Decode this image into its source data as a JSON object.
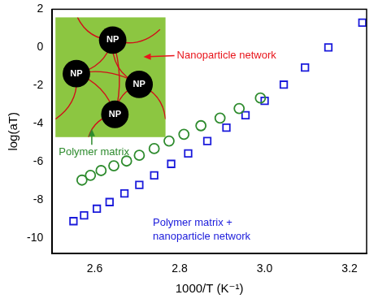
{
  "chart_data": {
    "type": "scatter",
    "x_label": "1000/T (K⁻¹)",
    "y_label": "log(aT)",
    "xlim": [
      2.5,
      3.24
    ],
    "ylim": [
      -10.8,
      2
    ],
    "xticks": [
      2.6,
      2.8,
      {
        "value": 3,
        "label": "3.0"
      },
      3.2
    ],
    "yticks": [
      -10,
      -8,
      -6,
      -4,
      -2,
      0,
      2
    ],
    "grid": false,
    "series": [
      {
        "name": "Polymer matrix",
        "color": "#2e8b2e",
        "marker": "circle",
        "x": [
          2.57,
          2.59,
          2.615,
          2.645,
          2.675,
          2.705,
          2.74,
          2.775,
          2.81,
          2.85,
          2.895,
          2.94,
          2.99
        ],
        "values": [
          -6.95,
          -6.7,
          -6.45,
          -6.2,
          -5.95,
          -5.65,
          -5.3,
          -4.9,
          -4.55,
          -4.1,
          -3.7,
          -3.2,
          -2.65
        ]
      },
      {
        "name": "Polymer matrix + nanoparticle network",
        "color": "#1a1adb",
        "marker": "square",
        "x": [
          2.55,
          2.575,
          2.605,
          2.635,
          2.67,
          2.705,
          2.74,
          2.78,
          2.82,
          2.865,
          2.91,
          2.955,
          3.0,
          3.045,
          3.095,
          3.15,
          3.23
        ],
        "values": [
          -9.1,
          -8.8,
          -8.45,
          -8.1,
          -7.65,
          -7.2,
          -6.7,
          -6.1,
          -5.55,
          -4.9,
          -4.2,
          -3.55,
          -2.8,
          -1.95,
          -1.05,
          0,
          1.3
        ]
      }
    ],
    "inset": {
      "particle_label": "NP",
      "annotation": "Nanoparticle network"
    }
  }
}
